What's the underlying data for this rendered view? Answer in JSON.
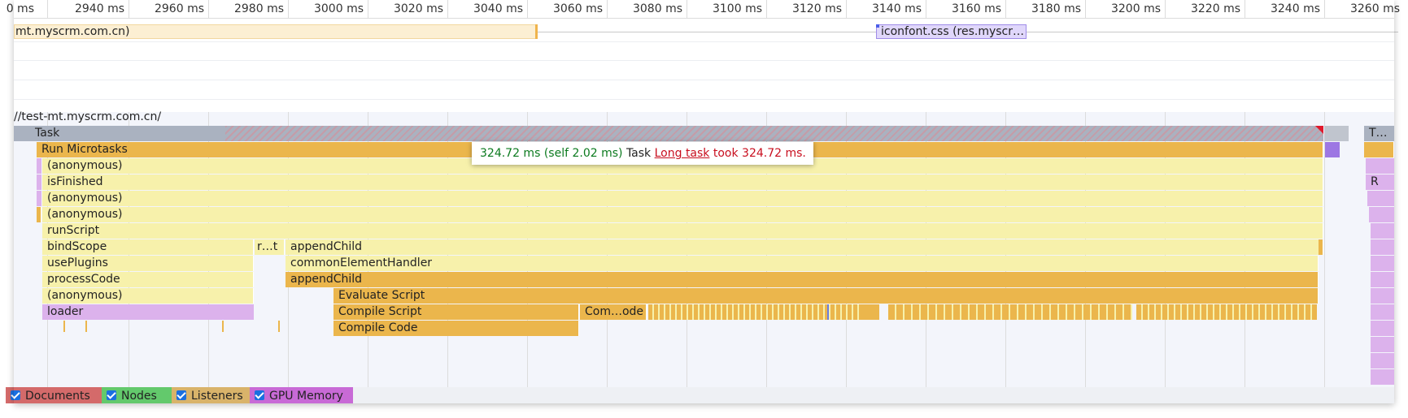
{
  "ruler": {
    "ticks": [
      "0 ms",
      "2940 ms",
      "2960 ms",
      "2980 ms",
      "3000 ms",
      "3020 ms",
      "3040 ms",
      "3060 ms",
      "3080 ms",
      "3100 ms",
      "3120 ms",
      "3140 ms",
      "3160 ms",
      "3180 ms",
      "3200 ms",
      "3220 ms",
      "3240 ms",
      "3260 ms"
    ]
  },
  "network": {
    "request_1": "mt.myscrm.com.cn)",
    "request_2": "iconfont.css (res.myscr…"
  },
  "thread": {
    "label": "//test-mt.myscrm.com.cn/"
  },
  "flame": {
    "task": "Task",
    "task_right": "T…",
    "run_microtasks": "Run Microtasks",
    "anonymous_1": "(anonymous)",
    "is_finished": "isFinished",
    "anonymous_2": "(anonymous)",
    "anonymous_3": "(anonymous)",
    "run_script": "runScript",
    "bind_scope": "bindScope",
    "r_t": "r…t",
    "append_child_1": "appendChild",
    "use_plugins": "usePlugins",
    "common_element_handler": "commonElementHandler",
    "process_code": "processCode",
    "append_child_2": "appendChild",
    "anonymous_4": "(anonymous)",
    "evaluate_script": "Evaluate Script",
    "loader": "loader",
    "compile_script": "Compile Script",
    "com_ode": "Com…ode",
    "compile_code": "Compile Code",
    "right_r": "R"
  },
  "tooltip": {
    "duration": "324.72 ms (self 2.02 ms)",
    "name": "Task",
    "link": "Long task",
    "message": "took 324.72 ms."
  },
  "bottom": {
    "documents": "Documents",
    "nodes": "Nodes",
    "listeners": "Listeners",
    "gpu_memory": "GPU Memory",
    "colors": {
      "documents": "#d46a6a",
      "nodes": "#63c96c",
      "listeners": "#d9b36a",
      "gpu_memory": "#c86ad6"
    }
  }
}
